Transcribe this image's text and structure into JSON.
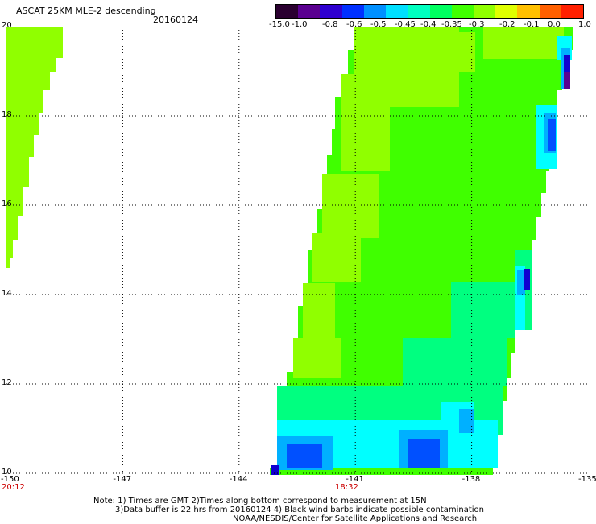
{
  "header": {
    "title": "ASCAT 25KM MLE-2 descending",
    "date": "20160124"
  },
  "colorbar": {
    "labels": [
      "-15.0",
      "-1.0",
      "-0.8",
      "-0.6",
      "-0.5",
      "-0.45",
      "-0.4",
      "-0.35",
      "-0.3",
      "-0.2",
      "-0.1",
      "0.0",
      "1.0"
    ],
    "colors": [
      "#2a0030",
      "#5a0090",
      "#2e00d0",
      "#0030ff",
      "#0090ff",
      "#00e0ff",
      "#00ffc0",
      "#00ff60",
      "#40ff00",
      "#90ff00",
      "#e0ff00",
      "#ffc000",
      "#ff6000",
      "#ff2000"
    ]
  },
  "map": {
    "lon_labels": [
      "-150",
      "-147",
      "-144",
      "-141",
      "-138",
      "-135"
    ],
    "lat_labels": [
      "20",
      "18",
      "16",
      "14",
      "12",
      "10"
    ],
    "time_labels": [
      "20:12",
      "18:32"
    ],
    "time_color": "#cc0000",
    "swath_colors": {
      "yellow_green": "#90ff00",
      "green": "#40ff00",
      "mint": "#00ff80",
      "cyan": "#00ffff",
      "light_blue": "#00b0ff",
      "blue": "#0050ff",
      "dark_blue": "#1000d0",
      "purple": "#5a0090"
    }
  },
  "notes": {
    "line1": "Note: 1) Times are GMT 2)Times along bottom correspond to measurement at 15N",
    "line2": "3)Data buffer is 22 hrs from 20160124 4) Black wind barbs indicate possible contamination",
    "line3": "NOAA/NESDIS/Center for Satellite Applications and Research"
  }
}
